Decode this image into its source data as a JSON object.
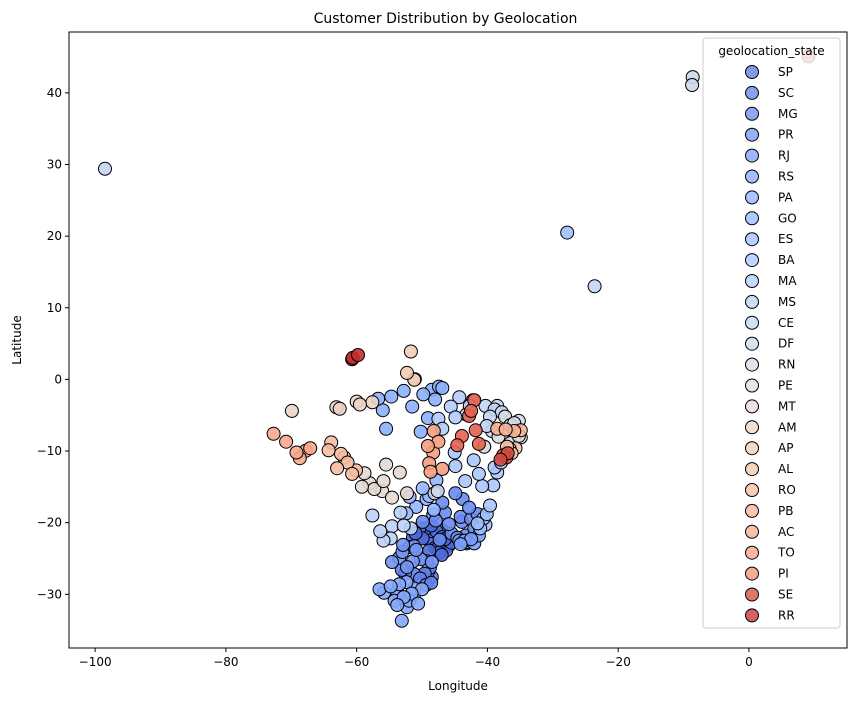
{
  "chart_data": {
    "type": "scatter",
    "title": "Customer Distribution by Geolocation",
    "xlabel": "Longitude",
    "ylabel": "Latitude",
    "xlim": [
      -104,
      15
    ],
    "ylim": [
      -37.5,
      48.5
    ],
    "xticks": [
      -100,
      -80,
      -60,
      -40,
      -20,
      0
    ],
    "yticks": [
      -30,
      -20,
      -10,
      0,
      10,
      20,
      30,
      40
    ],
    "grid": false,
    "legend": {
      "title": "geolocation_state",
      "placement": "top-right",
      "entries": [
        {
          "name": "SP",
          "color": "#5a78e4"
        },
        {
          "name": "SC",
          "color": "#6282ea"
        },
        {
          "name": "MG",
          "color": "#6a8bef"
        },
        {
          "name": "PR",
          "color": "#7295f4"
        },
        {
          "name": "RJ",
          "color": "#7b9ff9"
        },
        {
          "name": "RS",
          "color": "#84a7fc"
        },
        {
          "name": "PA",
          "color": "#8db0fe"
        },
        {
          "name": "GO",
          "color": "#96b7ff"
        },
        {
          "name": "ES",
          "color": "#9fbfff"
        },
        {
          "name": "BA",
          "color": "#a9c6fd"
        },
        {
          "name": "MA",
          "color": "#b2ccfb"
        },
        {
          "name": "MS",
          "color": "#bbd1f8"
        },
        {
          "name": "CE",
          "color": "#c4d5f3"
        },
        {
          "name": "DF",
          "color": "#cdd9ec"
        },
        {
          "name": "RN",
          "color": "#d5dbe5"
        },
        {
          "name": "PE",
          "color": "#dddcdc"
        },
        {
          "name": "MT",
          "color": "#e5d8d1"
        },
        {
          "name": "AM",
          "color": "#ecd3c5"
        },
        {
          "name": "AP",
          "color": "#f1ccb8"
        },
        {
          "name": "AL",
          "color": "#f4c5ad"
        },
        {
          "name": "RO",
          "color": "#f6bda2"
        },
        {
          "name": "PB",
          "color": "#f7b396"
        },
        {
          "name": "AC",
          "color": "#f7a98b"
        },
        {
          "name": "TO",
          "color": "#f59f80"
        },
        {
          "name": "PI",
          "color": "#f29274"
        },
        {
          "name": "SE",
          "color": "#d24b40"
        },
        {
          "name": "RR",
          "color": "#c32e31"
        }
      ]
    },
    "series": [
      {
        "name": "SP",
        "color": "#4e6ad8",
        "points": [
          [
            -46.6,
            -23.5
          ],
          [
            -47.1,
            -22.9
          ],
          [
            -49.1,
            -22.3
          ],
          [
            -48.5,
            -21.2
          ],
          [
            -46.9,
            -21.1
          ],
          [
            -51.4,
            -22.1
          ],
          [
            -49.4,
            -20.8
          ],
          [
            -47.8,
            -21.2
          ],
          [
            -45.9,
            -23.2
          ],
          [
            -46.3,
            -23.9
          ],
          [
            -48.0,
            -23.5
          ],
          [
            -47.5,
            -23.5
          ],
          [
            -50.4,
            -20.8
          ],
          [
            -45.5,
            -22.8
          ],
          [
            -46.9,
            -22.0
          ],
          [
            -48.6,
            -20.4
          ],
          [
            -49.9,
            -22.2
          ],
          [
            -47.4,
            -24.2
          ],
          [
            -46.5,
            -22.3
          ],
          [
            -48.9,
            -23.9
          ],
          [
            -51.0,
            -21.5
          ],
          [
            -47.0,
            -24.5
          ]
        ]
      },
      {
        "name": "SC",
        "color": "#6282ea",
        "points": [
          [
            -48.5,
            -27.6
          ],
          [
            -49.1,
            -26.9
          ],
          [
            -48.8,
            -26.3
          ],
          [
            -49.6,
            -27.1
          ],
          [
            -51.2,
            -27.2
          ],
          [
            -52.6,
            -27.1
          ],
          [
            -50.3,
            -27.8
          ],
          [
            -49.4,
            -28.7
          ],
          [
            -53.1,
            -26.6
          ],
          [
            -48.6,
            -28.4
          ]
        ]
      },
      {
        "name": "MG",
        "color": "#6a8bef",
        "points": [
          [
            -43.9,
            -19.9
          ],
          [
            -44.1,
            -19.2
          ],
          [
            -42.5,
            -19.5
          ],
          [
            -46.5,
            -18.6
          ],
          [
            -48.3,
            -18.9
          ],
          [
            -47.9,
            -19.7
          ],
          [
            -43.3,
            -21.8
          ],
          [
            -45.5,
            -21.5
          ],
          [
            -42.0,
            -20.8
          ],
          [
            -43.8,
            -16.7
          ],
          [
            -41.5,
            -18.8
          ],
          [
            -46.9,
            -17.2
          ],
          [
            -44.6,
            -22.1
          ],
          [
            -45.9,
            -20.2
          ],
          [
            -42.8,
            -17.9
          ],
          [
            -47.3,
            -22.4
          ],
          [
            -44.9,
            -15.9
          ],
          [
            -49.9,
            -19.9
          ]
        ]
      },
      {
        "name": "PR",
        "color": "#7295f4",
        "points": [
          [
            -49.3,
            -25.4
          ],
          [
            -51.9,
            -23.4
          ],
          [
            -51.2,
            -23.3
          ],
          [
            -53.5,
            -24.9
          ],
          [
            -54.6,
            -25.5
          ],
          [
            -50.2,
            -25.1
          ],
          [
            -51.4,
            -25.4
          ],
          [
            -52.3,
            -26.2
          ],
          [
            -48.5,
            -25.5
          ],
          [
            -53.0,
            -24.1
          ],
          [
            -50.9,
            -23.8
          ],
          [
            -52.9,
            -23.1
          ]
        ]
      },
      {
        "name": "RJ",
        "color": "#7b9ff9",
        "points": [
          [
            -43.2,
            -22.9
          ],
          [
            -43.1,
            -22.7
          ],
          [
            -42.0,
            -22.9
          ],
          [
            -44.3,
            -22.5
          ],
          [
            -41.3,
            -21.8
          ],
          [
            -43.5,
            -22.5
          ],
          [
            -42.5,
            -22.3
          ],
          [
            -44.1,
            -23.0
          ]
        ]
      },
      {
        "name": "RS",
        "color": "#84a7fc",
        "points": [
          [
            -51.2,
            -30.0
          ],
          [
            -51.2,
            -29.2
          ],
          [
            -52.4,
            -28.3
          ],
          [
            -53.8,
            -29.7
          ],
          [
            -52.3,
            -31.8
          ],
          [
            -55.8,
            -29.8
          ],
          [
            -54.2,
            -30.9
          ],
          [
            -53.1,
            -33.7
          ],
          [
            -50.0,
            -29.3
          ],
          [
            -52.0,
            -30.9
          ],
          [
            -56.5,
            -29.3
          ],
          [
            -51.6,
            -29.9
          ],
          [
            -53.5,
            -28.6
          ],
          [
            -54.8,
            -28.9
          ],
          [
            -50.6,
            -31.3
          ],
          [
            -52.8,
            -30.4
          ],
          [
            -53.8,
            -31.5
          ]
        ]
      },
      {
        "name": "PA",
        "color": "#8db0fe",
        "points": [
          [
            -48.5,
            -1.45
          ],
          [
            -54.7,
            -2.4
          ],
          [
            -49.1,
            -5.4
          ],
          [
            -47.4,
            -1.0
          ],
          [
            -52.8,
            -1.6
          ],
          [
            -56.0,
            -4.3
          ],
          [
            -50.2,
            -7.3
          ],
          [
            -48.0,
            -2.8
          ],
          [
            -51.5,
            -3.8
          ],
          [
            -49.8,
            -2.1
          ],
          [
            -56.7,
            -2.7
          ],
          [
            -55.5,
            -6.9
          ],
          [
            -46.9,
            -1.2
          ]
        ]
      },
      {
        "name": "GO",
        "color": "#96b7ff",
        "points": [
          [
            -49.3,
            -16.7
          ],
          [
            -48.9,
            -16.3
          ],
          [
            -50.9,
            -17.8
          ],
          [
            -51.9,
            -16.4
          ],
          [
            -48.2,
            -18.2
          ],
          [
            -49.9,
            -15.2
          ],
          [
            -47.8,
            -14.1
          ],
          [
            -52.4,
            -18.7
          ]
        ]
      },
      {
        "name": "ES",
        "color": "#9fbfff",
        "points": [
          [
            -40.3,
            -20.3
          ],
          [
            -40.6,
            -19.4
          ],
          [
            -41.1,
            -20.8
          ],
          [
            -40.1,
            -18.8
          ],
          [
            -41.5,
            -20.1
          ],
          [
            -27.8,
            20.5
          ]
        ]
      },
      {
        "name": "BA",
        "color": "#a9c6fd",
        "points": [
          [
            -38.5,
            -13.0
          ],
          [
            -38.9,
            -12.3
          ],
          [
            -40.5,
            -9.4
          ],
          [
            -39.1,
            -14.8
          ],
          [
            -40.8,
            -14.9
          ],
          [
            -44.9,
            -12.1
          ],
          [
            -39.6,
            -17.6
          ],
          [
            -42.1,
            -11.3
          ],
          [
            -41.3,
            -13.2
          ],
          [
            -43.4,
            -14.2
          ],
          [
            -37.9,
            -11.6
          ],
          [
            -45.0,
            -10.2
          ]
        ]
      },
      {
        "name": "MA",
        "color": "#b2ccfb",
        "points": [
          [
            -44.3,
            -2.5
          ],
          [
            -47.5,
            -5.5
          ],
          [
            -43.2,
            -4.9
          ],
          [
            -45.6,
            -3.8
          ],
          [
            -46.9,
            -6.9
          ],
          [
            -44.9,
            -5.3
          ],
          [
            -42.2,
            -2.9
          ],
          [
            -42.7,
            -3.7
          ]
        ]
      },
      {
        "name": "MS",
        "color": "#bbd1f8",
        "points": [
          [
            -54.6,
            -20.5
          ],
          [
            -54.8,
            -22.2
          ],
          [
            -57.6,
            -19.0
          ],
          [
            -51.7,
            -20.8
          ],
          [
            -55.9,
            -22.5
          ],
          [
            -53.3,
            -18.6
          ],
          [
            -56.4,
            -21.2
          ],
          [
            -52.8,
            -20.4
          ]
        ]
      },
      {
        "name": "CE",
        "color": "#c4d5f3",
        "points": [
          [
            -38.5,
            -3.7
          ],
          [
            -39.3,
            -7.2
          ],
          [
            -40.3,
            -3.7
          ],
          [
            -38.9,
            -4.2
          ],
          [
            -37.8,
            -4.6
          ],
          [
            -39.6,
            -5.2
          ],
          [
            -40.1,
            -6.5
          ],
          [
            -98.5,
            29.4
          ],
          [
            -23.6,
            13.0
          ]
        ]
      },
      {
        "name": "DF",
        "color": "#cdd9ec",
        "points": [
          [
            -47.9,
            -15.8
          ],
          [
            -48.1,
            -15.9
          ],
          [
            -47.6,
            -15.6
          ],
          [
            -8.6,
            42.2
          ],
          [
            -8.7,
            41.1
          ]
        ]
      },
      {
        "name": "RN",
        "color": "#d5dbe5",
        "points": [
          [
            -35.2,
            -5.8
          ],
          [
            -37.3,
            -5.2
          ],
          [
            -36.5,
            -6.4
          ],
          [
            -35.9,
            -6.1
          ]
        ]
      },
      {
        "name": "PE",
        "color": "#dddcdc",
        "points": [
          [
            -34.9,
            -8.1
          ],
          [
            -35.9,
            -8.3
          ],
          [
            -36.5,
            -8.9
          ],
          [
            -40.5,
            -9.4
          ],
          [
            -38.3,
            -8.0
          ],
          [
            -35.2,
            -7.9
          ]
        ]
      },
      {
        "name": "MT",
        "color": "#e5d8d1",
        "points": [
          [
            -56.1,
            -15.6
          ],
          [
            -54.6,
            -16.5
          ],
          [
            -55.5,
            -11.9
          ],
          [
            -58.0,
            -14.5
          ],
          [
            -52.3,
            -15.9
          ],
          [
            -57.3,
            -15.3
          ],
          [
            -53.4,
            -13.0
          ],
          [
            -59.2,
            -15.0
          ],
          [
            -55.9,
            -14.2
          ],
          [
            -58.8,
            -13.1
          ]
        ]
      },
      {
        "name": "AM",
        "color": "#ecd3c5",
        "points": [
          [
            -60.0,
            -3.1
          ],
          [
            -63.1,
            -3.9
          ],
          [
            -57.6,
            -3.2
          ],
          [
            -59.5,
            -3.5
          ],
          [
            -62.6,
            -4.1
          ],
          [
            -69.9,
            -4.4
          ]
        ]
      },
      {
        "name": "AP",
        "color": "#f1ccb8",
        "points": [
          [
            -51.1,
            0.03
          ],
          [
            -51.2,
            -0.05
          ],
          [
            -52.3,
            0.9
          ],
          [
            -51.7,
            3.9
          ]
        ]
      },
      {
        "name": "AL",
        "color": "#f4c5ad",
        "points": [
          [
            -35.7,
            -9.6
          ],
          [
            -36.6,
            -9.7
          ],
          [
            -36.3,
            -10.3
          ],
          [
            -37.0,
            -9.4
          ]
        ]
      },
      {
        "name": "RO",
        "color": "#f6bda2",
        "points": [
          [
            -63.9,
            -8.8
          ],
          [
            -61.9,
            -10.9
          ],
          [
            -60.1,
            -12.7
          ],
          [
            -62.4,
            -10.4
          ],
          [
            -64.3,
            -9.9
          ],
          [
            -61.4,
            -11.6
          ],
          [
            -63.0,
            -12.4
          ],
          [
            -60.7,
            -13.2
          ]
        ]
      },
      {
        "name": "PB",
        "color": "#f7b396",
        "points": [
          [
            -34.9,
            -7.1
          ],
          [
            -35.9,
            -7.2
          ],
          [
            -38.5,
            -6.9
          ],
          [
            -37.2,
            -7.0
          ]
        ]
      },
      {
        "name": "AC",
        "color": "#f7a98b",
        "points": [
          [
            -67.8,
            -9.97
          ],
          [
            -68.7,
            -11.0
          ],
          [
            -72.7,
            -7.6
          ],
          [
            -70.8,
            -8.7
          ],
          [
            -69.2,
            -10.2
          ],
          [
            -67.1,
            -9.6
          ]
        ]
      },
      {
        "name": "TO",
        "color": "#f59f80",
        "points": [
          [
            -48.3,
            -10.2
          ],
          [
            -48.2,
            -7.2
          ],
          [
            -48.9,
            -11.7
          ],
          [
            -47.5,
            -8.7
          ],
          [
            -49.1,
            -9.3
          ],
          [
            -46.9,
            -12.5
          ],
          [
            -48.7,
            -12.9
          ]
        ]
      },
      {
        "name": "PI",
        "color": "#e8624f",
        "points": [
          [
            -42.8,
            -5.1
          ],
          [
            -41.8,
            -7.1
          ],
          [
            -42.0,
            -2.9
          ],
          [
            -43.9,
            -7.9
          ],
          [
            -41.3,
            -9.0
          ],
          [
            -44.6,
            -9.2
          ],
          [
            -42.5,
            -4.4
          ]
        ]
      },
      {
        "name": "SE",
        "color": "#d24b40",
        "points": [
          [
            -37.1,
            -10.9
          ],
          [
            -37.6,
            -10.6
          ],
          [
            -36.9,
            -10.3
          ],
          [
            -38.0,
            -11.2
          ]
        ]
      },
      {
        "name": "RR",
        "color": "#c32e31",
        "points": [
          [
            -60.7,
            2.8
          ],
          [
            -60.6,
            3.0
          ],
          [
            -59.8,
            3.4
          ],
          [
            9.1,
            45.1
          ]
        ]
      }
    ]
  }
}
